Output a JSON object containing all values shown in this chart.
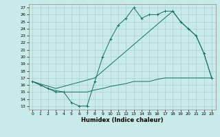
{
  "xlabel": "Humidex (Indice chaleur)",
  "ylabel": "",
  "background_color": "#c8eae8",
  "grid_color": "#a8d4d0",
  "line_color": "#1a6b5a",
  "xlim": [
    -0.5,
    23.5
  ],
  "ylim": [
    12.5,
    27.5
  ],
  "yticks": [
    13,
    14,
    15,
    16,
    17,
    18,
    19,
    20,
    21,
    22,
    23,
    24,
    25,
    26,
    27
  ],
  "xticks": [
    0,
    1,
    2,
    3,
    4,
    5,
    6,
    7,
    8,
    9,
    10,
    11,
    12,
    13,
    14,
    15,
    16,
    17,
    18,
    19,
    20,
    21,
    22,
    23
  ],
  "line1_x": [
    0,
    1,
    2,
    3,
    4,
    5,
    6,
    7,
    8,
    9,
    10,
    11,
    12,
    13,
    14,
    15,
    16,
    17,
    18,
    19,
    20,
    21,
    22,
    23
  ],
  "line1_y": [
    16.5,
    16.0,
    15.5,
    15.0,
    15.0,
    13.5,
    13.0,
    13.0,
    16.5,
    20.0,
    22.5,
    24.5,
    25.5,
    27.0,
    25.5,
    26.0,
    26.0,
    26.5,
    26.5,
    25.0,
    24.0,
    23.0,
    20.5,
    17.0
  ],
  "line2_x": [
    0,
    3,
    8,
    18,
    19,
    20,
    21,
    22,
    23
  ],
  "line2_y": [
    16.5,
    15.5,
    17.0,
    26.5,
    25.0,
    24.0,
    23.0,
    20.5,
    17.0
  ],
  "line3_x": [
    0,
    1,
    2,
    3,
    4,
    5,
    6,
    7,
    8,
    9,
    10,
    11,
    12,
    13,
    14,
    15,
    16,
    17,
    18,
    19,
    20,
    21,
    22,
    23
  ],
  "line3_y": [
    16.5,
    16.0,
    15.5,
    15.2,
    15.0,
    15.0,
    15.0,
    15.0,
    15.3,
    15.5,
    15.8,
    16.0,
    16.2,
    16.5,
    16.5,
    16.5,
    16.8,
    17.0,
    17.0,
    17.0,
    17.0,
    17.0,
    17.0,
    17.0
  ]
}
